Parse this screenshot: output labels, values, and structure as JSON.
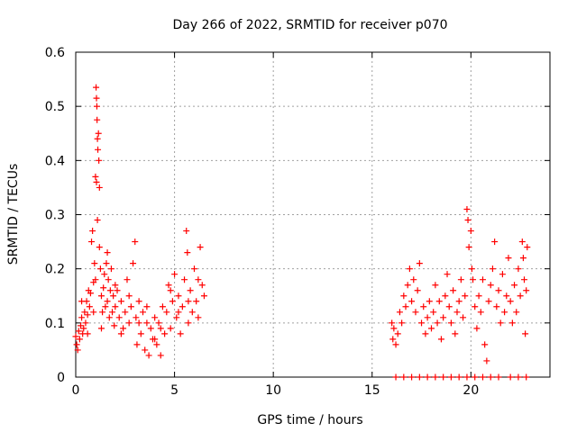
{
  "chart_data": {
    "type": "scatter",
    "title": "Day 266 of 2022, SRMTID for receiver p070",
    "xlabel": "GPS time / hours",
    "ylabel": "SRMTID / TECUs",
    "xlim": [
      0,
      24
    ],
    "ylim": [
      0,
      0.6
    ],
    "xticks": [
      0,
      5,
      10,
      15,
      20
    ],
    "xtick_labels": [
      "0",
      "5",
      "10",
      "15",
      "20"
    ],
    "yticks": [
      0,
      0.1,
      0.2,
      0.3,
      0.4,
      0.5,
      0.6
    ],
    "ytick_labels": [
      "0",
      "0.1",
      "0.2",
      "0.3",
      "0.4",
      "0.5",
      "0.6"
    ],
    "grid": true,
    "legend": "none",
    "marker": "+",
    "marker_color": "#ff0000",
    "series": [
      {
        "name": "SRMTID",
        "points": [
          [
            0.0,
            0.075
          ],
          [
            0.05,
            0.06
          ],
          [
            0.1,
            0.05
          ],
          [
            0.15,
            0.085
          ],
          [
            0.2,
            0.07
          ],
          [
            0.25,
            0.095
          ],
          [
            0.3,
            0.11
          ],
          [
            0.35,
            0.08
          ],
          [
            0.4,
            0.09
          ],
          [
            0.45,
            0.12
          ],
          [
            0.5,
            0.1
          ],
          [
            0.55,
            0.14
          ],
          [
            0.6,
            0.115
          ],
          [
            0.65,
            0.16
          ],
          [
            0.7,
            0.13
          ],
          [
            0.75,
            0.155
          ],
          [
            0.8,
            0.25
          ],
          [
            0.85,
            0.27
          ],
          [
            0.9,
            0.175
          ],
          [
            0.95,
            0.21
          ],
          [
            1.0,
            0.18
          ],
          [
            1.03,
            0.535
          ],
          [
            1.05,
            0.515
          ],
          [
            1.07,
            0.5
          ],
          [
            1.08,
            0.475
          ],
          [
            1.1,
            0.44
          ],
          [
            1.12,
            0.42
          ],
          [
            1.15,
            0.45
          ],
          [
            1.17,
            0.4
          ],
          [
            1.2,
            0.35
          ],
          [
            1.0,
            0.37
          ],
          [
            1.05,
            0.36
          ],
          [
            1.1,
            0.29
          ],
          [
            1.2,
            0.24
          ],
          [
            1.25,
            0.2
          ],
          [
            1.3,
            0.15
          ],
          [
            1.35,
            0.12
          ],
          [
            1.4,
            0.165
          ],
          [
            1.45,
            0.19
          ],
          [
            1.5,
            0.13
          ],
          [
            1.55,
            0.21
          ],
          [
            1.6,
            0.14
          ],
          [
            1.65,
            0.18
          ],
          [
            1.7,
            0.11
          ],
          [
            1.75,
            0.16
          ],
          [
            1.8,
            0.2
          ],
          [
            1.85,
            0.12
          ],
          [
            1.9,
            0.15
          ],
          [
            1.95,
            0.095
          ],
          [
            2.0,
            0.13
          ],
          [
            2.1,
            0.16
          ],
          [
            2.2,
            0.11
          ],
          [
            2.3,
            0.14
          ],
          [
            2.4,
            0.09
          ],
          [
            2.5,
            0.12
          ],
          [
            2.6,
            0.18
          ],
          [
            2.7,
            0.1
          ],
          [
            2.8,
            0.13
          ],
          [
            2.9,
            0.21
          ],
          [
            3.0,
            0.25
          ],
          [
            3.05,
            0.11
          ],
          [
            3.1,
            0.06
          ],
          [
            3.2,
            0.14
          ],
          [
            3.3,
            0.08
          ],
          [
            3.4,
            0.12
          ],
          [
            3.5,
            0.05
          ],
          [
            3.6,
            0.1
          ],
          [
            3.7,
            0.04
          ],
          [
            3.8,
            0.09
          ],
          [
            3.9,
            0.07
          ],
          [
            4.0,
            0.11
          ],
          [
            4.1,
            0.06
          ],
          [
            4.2,
            0.1
          ],
          [
            4.3,
            0.04
          ],
          [
            4.4,
            0.13
          ],
          [
            4.5,
            0.08
          ],
          [
            4.6,
            0.12
          ],
          [
            4.7,
            0.17
          ],
          [
            4.8,
            0.09
          ],
          [
            4.9,
            0.14
          ],
          [
            5.0,
            0.19
          ],
          [
            5.1,
            0.11
          ],
          [
            5.2,
            0.15
          ],
          [
            5.3,
            0.08
          ],
          [
            5.4,
            0.13
          ],
          [
            5.5,
            0.18
          ],
          [
            5.6,
            0.27
          ],
          [
            5.65,
            0.23
          ],
          [
            5.7,
            0.1
          ],
          [
            5.8,
            0.16
          ],
          [
            5.9,
            0.12
          ],
          [
            6.0,
            0.2
          ],
          [
            6.1,
            0.14
          ],
          [
            6.2,
            0.18
          ],
          [
            6.3,
            0.24
          ],
          [
            6.4,
            0.17
          ],
          [
            6.5,
            0.15
          ],
          [
            0.3,
            0.14
          ],
          [
            0.6,
            0.08
          ],
          [
            0.9,
            0.12
          ],
          [
            1.3,
            0.09
          ],
          [
            1.6,
            0.23
          ],
          [
            2.0,
            0.17
          ],
          [
            2.3,
            0.08
          ],
          [
            2.7,
            0.15
          ],
          [
            3.2,
            0.1
          ],
          [
            3.6,
            0.13
          ],
          [
            4.0,
            0.07
          ],
          [
            4.3,
            0.09
          ],
          [
            4.8,
            0.16
          ],
          [
            5.2,
            0.12
          ],
          [
            5.7,
            0.14
          ],
          [
            6.2,
            0.11
          ],
          [
            16.0,
            0.1
          ],
          [
            16.05,
            0.07
          ],
          [
            16.1,
            0.09
          ],
          [
            16.2,
            0.06
          ],
          [
            16.3,
            0.08
          ],
          [
            16.4,
            0.12
          ],
          [
            16.5,
            0.1
          ],
          [
            16.6,
            0.15
          ],
          [
            16.7,
            0.13
          ],
          [
            16.8,
            0.17
          ],
          [
            16.9,
            0.2
          ],
          [
            17.0,
            0.14
          ],
          [
            17.1,
            0.18
          ],
          [
            17.2,
            0.12
          ],
          [
            17.3,
            0.16
          ],
          [
            17.4,
            0.21
          ],
          [
            17.5,
            0.1
          ],
          [
            17.6,
            0.13
          ],
          [
            17.7,
            0.08
          ],
          [
            17.8,
            0.11
          ],
          [
            17.9,
            0.14
          ],
          [
            18.0,
            0.09
          ],
          [
            18.1,
            0.12
          ],
          [
            18.2,
            0.17
          ],
          [
            18.3,
            0.1
          ],
          [
            18.4,
            0.14
          ],
          [
            18.5,
            0.07
          ],
          [
            18.6,
            0.11
          ],
          [
            18.7,
            0.15
          ],
          [
            18.8,
            0.19
          ],
          [
            18.9,
            0.13
          ],
          [
            19.0,
            0.1
          ],
          [
            19.1,
            0.16
          ],
          [
            19.2,
            0.08
          ],
          [
            19.3,
            0.12
          ],
          [
            19.4,
            0.14
          ],
          [
            19.5,
            0.18
          ],
          [
            19.6,
            0.11
          ],
          [
            19.7,
            0.15
          ],
          [
            19.8,
            0.31
          ],
          [
            19.85,
            0.29
          ],
          [
            19.9,
            0.24
          ],
          [
            20.0,
            0.27
          ],
          [
            20.05,
            0.2
          ],
          [
            20.1,
            0.18
          ],
          [
            20.2,
            0.13
          ],
          [
            20.3,
            0.09
          ],
          [
            20.4,
            0.15
          ],
          [
            20.5,
            0.12
          ],
          [
            20.6,
            0.18
          ],
          [
            20.7,
            0.06
          ],
          [
            20.8,
            0.03
          ],
          [
            20.9,
            0.14
          ],
          [
            21.0,
            0.17
          ],
          [
            21.1,
            0.2
          ],
          [
            21.2,
            0.25
          ],
          [
            21.3,
            0.13
          ],
          [
            21.4,
            0.16
          ],
          [
            21.5,
            0.1
          ],
          [
            21.6,
            0.19
          ],
          [
            21.7,
            0.12
          ],
          [
            21.8,
            0.15
          ],
          [
            21.9,
            0.22
          ],
          [
            22.0,
            0.14
          ],
          [
            22.1,
            0.1
          ],
          [
            22.2,
            0.17
          ],
          [
            22.3,
            0.12
          ],
          [
            22.4,
            0.2
          ],
          [
            22.5,
            0.15
          ],
          [
            22.6,
            0.25
          ],
          [
            22.65,
            0.22
          ],
          [
            22.7,
            0.18
          ],
          [
            22.75,
            0.08
          ],
          [
            22.8,
            0.16
          ],
          [
            22.85,
            0.24
          ],
          [
            16.2,
            0.0
          ],
          [
            16.6,
            0.0
          ],
          [
            17.0,
            0.0
          ],
          [
            17.4,
            0.0
          ],
          [
            17.8,
            0.0
          ],
          [
            18.2,
            0.0
          ],
          [
            18.6,
            0.0
          ],
          [
            19.0,
            0.0
          ],
          [
            19.4,
            0.0
          ],
          [
            19.8,
            0.0
          ],
          [
            20.2,
            0.0
          ],
          [
            20.6,
            0.0
          ],
          [
            21.0,
            0.0
          ],
          [
            21.4,
            0.0
          ],
          [
            22.0,
            0.0
          ],
          [
            22.4,
            0.0
          ],
          [
            22.8,
            0.0
          ]
        ]
      }
    ]
  }
}
